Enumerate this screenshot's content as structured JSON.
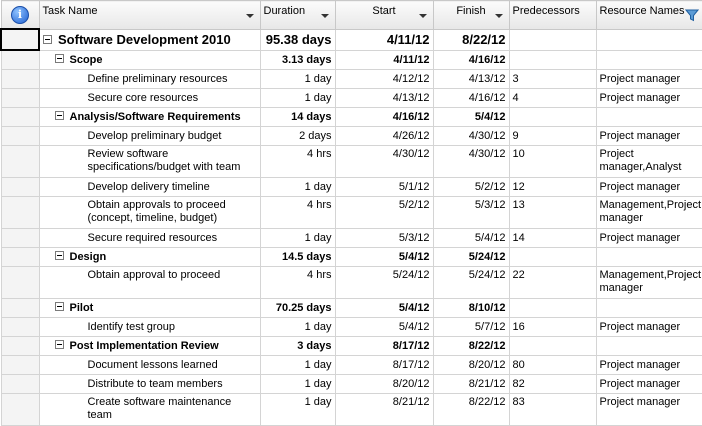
{
  "columns": {
    "info_icon": "info-icon",
    "task_name": "Task Name",
    "duration": "Duration",
    "start": "Start",
    "finish": "Finish",
    "predecessors": "Predecessors",
    "resource_names": "Resource Names"
  },
  "rows": [
    {
      "name": "Software Development 2010",
      "duration": "95.38 days",
      "start": "4/11/12",
      "finish": "8/22/12",
      "pred": "",
      "res": ""
    },
    {
      "name": "Scope",
      "duration": "3.13 days",
      "start": "4/11/12",
      "finish": "4/16/12",
      "pred": "",
      "res": ""
    },
    {
      "name": "Define preliminary resources",
      "duration": "1 day",
      "start": "4/12/12",
      "finish": "4/13/12",
      "pred": "3",
      "res": "Project manager"
    },
    {
      "name": "Secure core resources",
      "duration": "1 day",
      "start": "4/13/12",
      "finish": "4/16/12",
      "pred": "4",
      "res": "Project manager"
    },
    {
      "name": "Analysis/Software Requirements",
      "duration": "14 days",
      "start": "4/16/12",
      "finish": "5/4/12",
      "pred": "",
      "res": ""
    },
    {
      "name": "Develop preliminary budget",
      "duration": "2 days",
      "start": "4/26/12",
      "finish": "4/30/12",
      "pred": "9",
      "res": "Project manager"
    },
    {
      "name_l1": "Review software",
      "name_l2": "specifications/budget with team",
      "duration": "4 hrs",
      "start": "4/30/12",
      "finish": "4/30/12",
      "pred": "10",
      "res_l1": "Project",
      "res_l2": "manager,Analyst"
    },
    {
      "name": "Develop delivery timeline",
      "duration": "1 day",
      "start": "5/1/12",
      "finish": "5/2/12",
      "pred": "12",
      "res": "Project manager"
    },
    {
      "name_l1": "Obtain approvals to proceed",
      "name_l2": "(concept, timeline, budget)",
      "duration": "4 hrs",
      "start": "5/2/12",
      "finish": "5/3/12",
      "pred": "13",
      "res_l1": "Management,Project",
      "res_l2": "manager"
    },
    {
      "name": "Secure required resources",
      "duration": "1 day",
      "start": "5/3/12",
      "finish": "5/4/12",
      "pred": "14",
      "res": "Project manager"
    },
    {
      "name": "Design",
      "duration": "14.5 days",
      "start": "5/4/12",
      "finish": "5/24/12",
      "pred": "",
      "res": ""
    },
    {
      "name": "Obtain approval to proceed",
      "duration": "4 hrs",
      "start": "5/24/12",
      "finish": "5/24/12",
      "pred": "22",
      "res_l1": "Management,Project",
      "res_l2": "manager"
    },
    {
      "name": "Pilot",
      "duration": "70.25 days",
      "start": "5/4/12",
      "finish": "8/10/12",
      "pred": "",
      "res": ""
    },
    {
      "name": "Identify test group",
      "duration": "1 day",
      "start": "5/4/12",
      "finish": "5/7/12",
      "pred": "16",
      "res": "Project manager"
    },
    {
      "name": "Post Implementation Review",
      "duration": "3 days",
      "start": "8/17/12",
      "finish": "8/22/12",
      "pred": "",
      "res": ""
    },
    {
      "name": "Document lessons learned",
      "duration": "1 day",
      "start": "8/17/12",
      "finish": "8/20/12",
      "pred": "80",
      "res": "Project manager"
    },
    {
      "name": "Distribute to team members",
      "duration": "1 day",
      "start": "8/20/12",
      "finish": "8/21/12",
      "pred": "82",
      "res": "Project manager"
    },
    {
      "name_l1": "Create software maintenance",
      "name_l2": "team",
      "duration": "1 day",
      "start": "8/21/12",
      "finish": "8/22/12",
      "pred": "83",
      "res": "Project manager"
    }
  ]
}
